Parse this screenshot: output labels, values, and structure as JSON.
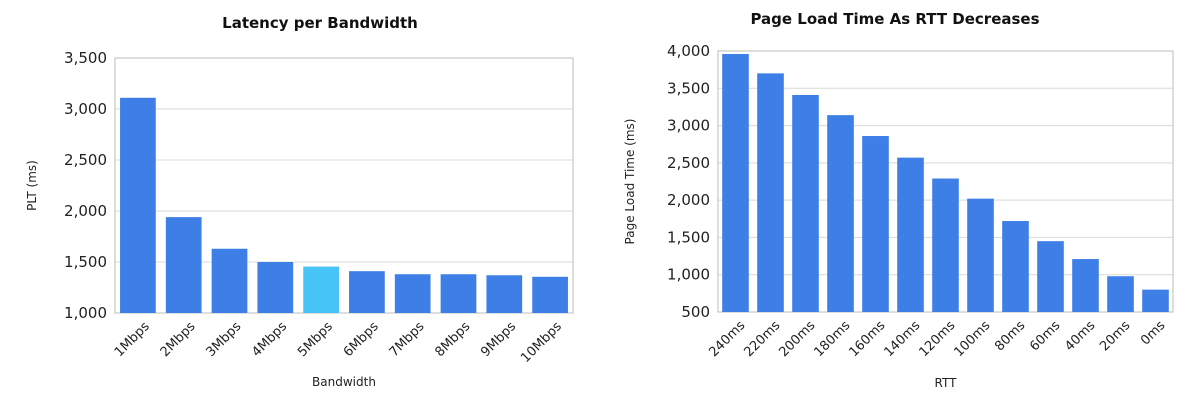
{
  "chart_data": [
    {
      "type": "bar",
      "title": "Latency per Bandwidth",
      "xlabel": "Bandwidth",
      "ylabel": "PLT (ms)",
      "ylim": [
        1000,
        3500
      ],
      "yticks": [
        1000,
        1500,
        2000,
        2500,
        3000,
        3500
      ],
      "ytick_labels": [
        "1,000",
        "1,500",
        "2,000",
        "2,500",
        "3,000",
        "3,500"
      ],
      "categories": [
        "1Mbps",
        "2Mbps",
        "3Mbps",
        "4Mbps",
        "5Mbps",
        "6Mbps",
        "7Mbps",
        "8Mbps",
        "9Mbps",
        "10Mbps"
      ],
      "values": [
        3110,
        1940,
        1630,
        1500,
        1455,
        1410,
        1380,
        1380,
        1370,
        1355
      ],
      "colors": [
        "#3d7fe6",
        "#3d7fe6",
        "#3d7fe6",
        "#3d7fe6",
        "#45c4f5",
        "#3d7fe6",
        "#3d7fe6",
        "#3d7fe6",
        "#3d7fe6",
        "#3d7fe6"
      ],
      "grid": true
    },
    {
      "type": "bar",
      "title": "Page Load Time As RTT Decreases",
      "xlabel": "RTT",
      "ylabel": "Page Load Time (ms)",
      "ylim": [
        500,
        4000
      ],
      "yticks": [
        500,
        1000,
        1500,
        2000,
        2500,
        3000,
        3500,
        4000
      ],
      "ytick_labels": [
        "500",
        "1,000",
        "1,500",
        "2,000",
        "2,500",
        "3,000",
        "3,500",
        "4,000"
      ],
      "categories": [
        "240ms",
        "220ms",
        "200ms",
        "180ms",
        "160ms",
        "140ms",
        "120ms",
        "100ms",
        "80ms",
        "60ms",
        "40ms",
        "20ms",
        "0ms"
      ],
      "values": [
        3960,
        3700,
        3410,
        3140,
        2860,
        2570,
        2290,
        2020,
        1720,
        1450,
        1210,
        980,
        800
      ],
      "colors": [
        "#3d7fe6"
      ],
      "grid": true
    }
  ]
}
